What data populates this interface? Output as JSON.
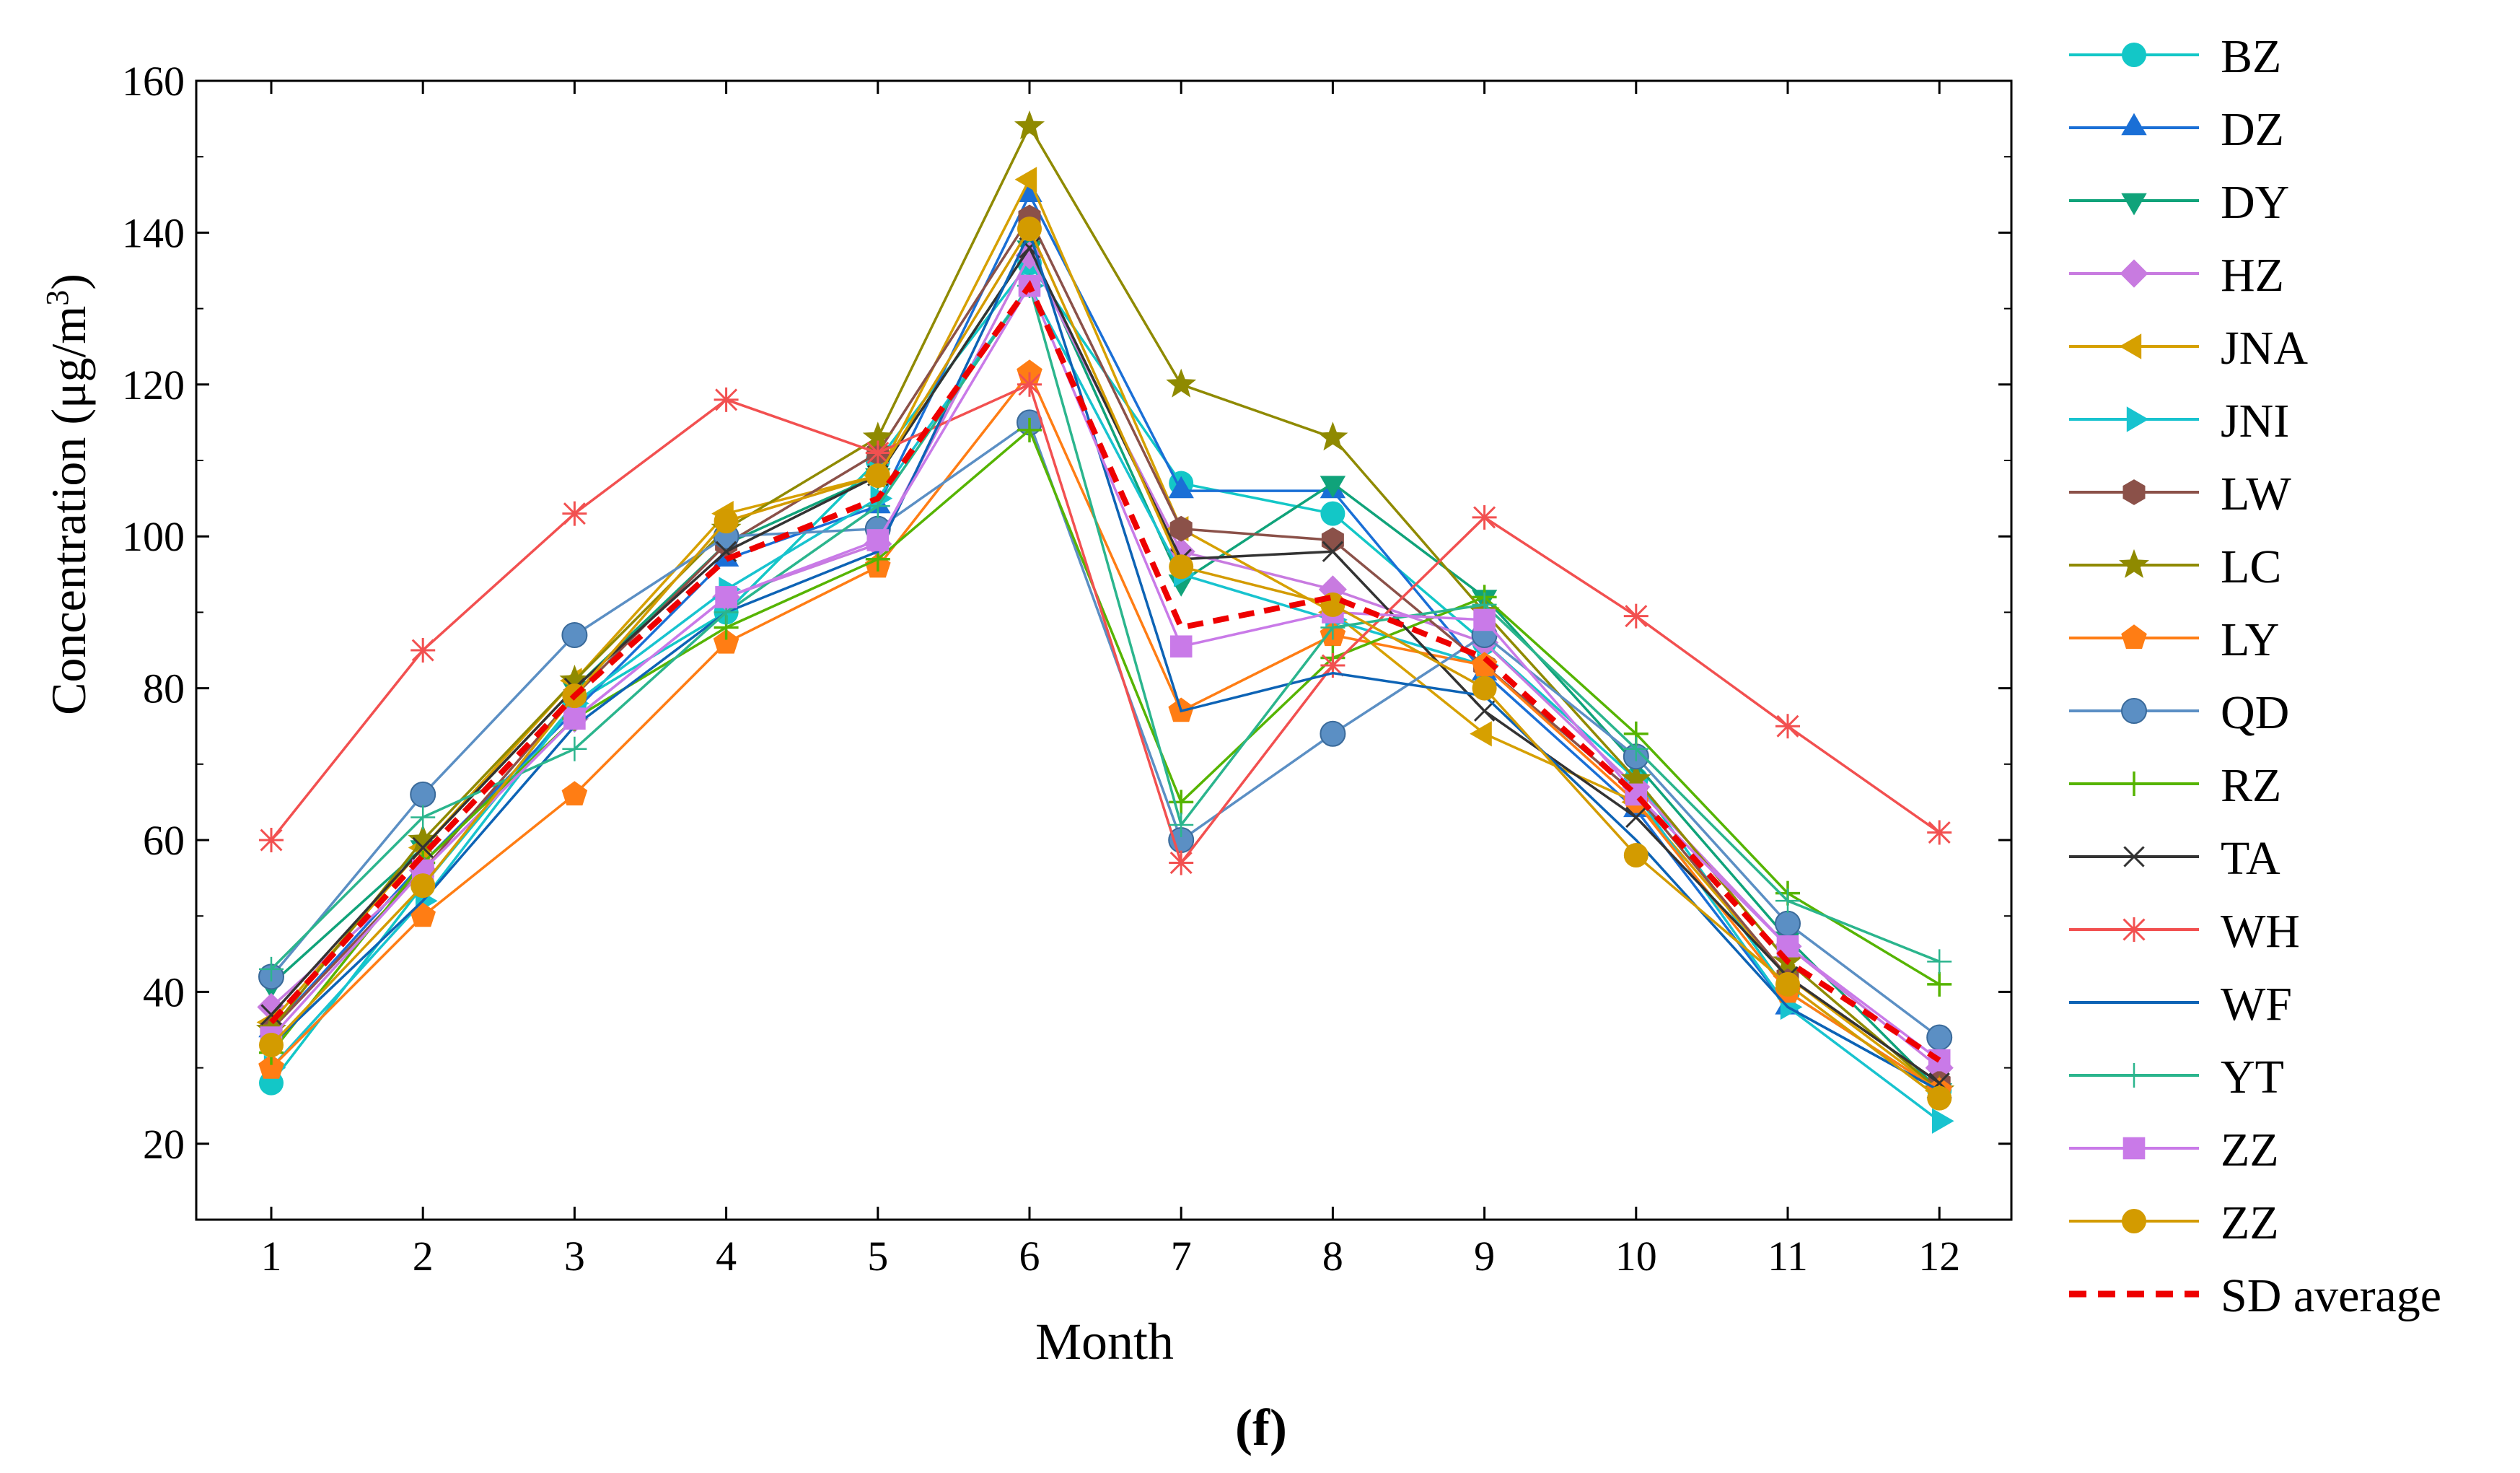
{
  "chart_data": {
    "type": "line",
    "title": "",
    "caption": "(f)",
    "xlabel": "Month",
    "ylabel_main": "Concentration (μg/m",
    "ylabel_sup": "3",
    "ylabel_close": ")",
    "categories": [
      "1",
      "2",
      "3",
      "4",
      "5",
      "6",
      "7",
      "8",
      "9",
      "10",
      "11",
      "12"
    ],
    "yticks": [
      "20",
      "40",
      "60",
      "80",
      "100",
      "120",
      "140",
      "160"
    ],
    "ylim": [
      10,
      160
    ],
    "legend_position": "right",
    "series": [
      {
        "name": "BZ",
        "color": "#13c7c7",
        "marker": "circle",
        "values": [
          28,
          54,
          78,
          90,
          110,
          136,
          107,
          103,
          86,
          68,
          40,
          27
        ]
      },
      {
        "name": "DZ",
        "color": "#1a6fd6",
        "marker": "triangle-up",
        "values": [
          35,
          57,
          77,
          97,
          104,
          145,
          106,
          106,
          82,
          64,
          38,
          27
        ]
      },
      {
        "name": "DY",
        "color": "#10a37a",
        "marker": "triangle-down",
        "values": [
          41,
          59,
          80,
          99,
          108,
          138,
          94,
          107,
          92,
          70,
          47,
          27
        ]
      },
      {
        "name": "HZ",
        "color": "#c87be0",
        "marker": "diamond",
        "values": [
          38,
          56,
          76,
          92,
          99,
          137,
          98,
          93,
          86,
          67,
          46,
          30
        ]
      },
      {
        "name": "JNA",
        "color": "#d6a000",
        "marker": "triangle-left",
        "values": [
          36,
          59,
          81,
          103,
          108,
          147,
          101,
          90,
          74,
          65,
          42,
          27
        ]
      },
      {
        "name": "JNI",
        "color": "#18c3cf",
        "marker": "triangle-right",
        "values": [
          30,
          52,
          78,
          93,
          105,
          133,
          95,
          89,
          83,
          66,
          38,
          23
        ]
      },
      {
        "name": "LW",
        "color": "#8b5149",
        "marker": "hexagon",
        "values": [
          35,
          56,
          79,
          99,
          111,
          142,
          101,
          99.5,
          83,
          66,
          42,
          28
        ]
      },
      {
        "name": "LC",
        "color": "#8f8a00",
        "marker": "star",
        "values": [
          35,
          60,
          81,
          101,
          113,
          154,
          120,
          113,
          90,
          68,
          44,
          27
        ]
      },
      {
        "name": "LY",
        "color": "#ff7d14",
        "marker": "pentagon",
        "values": [
          30,
          50,
          66,
          86,
          96,
          121.5,
          77,
          87,
          83,
          65,
          40,
          27
        ]
      },
      {
        "name": "QD",
        "color": "#5b8fc4",
        "marker": "sphere",
        "values": [
          42,
          66,
          87,
          100,
          101,
          115,
          60,
          74,
          87,
          71,
          49,
          34
        ]
      },
      {
        "name": "RZ",
        "color": "#56b400",
        "marker": "plus",
        "values": [
          32,
          57,
          76,
          88,
          97,
          114,
          65,
          84,
          92,
          74,
          53,
          41
        ]
      },
      {
        "name": "TA",
        "color": "#333333",
        "marker": "x",
        "values": [
          37,
          59,
          80,
          98,
          108,
          138,
          97,
          98,
          77,
          63,
          42,
          28
        ]
      },
      {
        "name": "WH",
        "color": "#f25050",
        "marker": "asterisk",
        "values": [
          60,
          85,
          103,
          118,
          111,
          120,
          57,
          83,
          102.5,
          89.5,
          75,
          61
        ]
      },
      {
        "name": "WF",
        "color": "#0d63b5",
        "marker": "none",
        "values": [
          33,
          52,
          75,
          90,
          98,
          140,
          77,
          82,
          79,
          60,
          38,
          27
        ]
      },
      {
        "name": "YT",
        "color": "#2bb58d",
        "marker": "plus-thin",
        "values": [
          43,
          63,
          72,
          90,
          104,
          133,
          62,
          88,
          91,
          72,
          52,
          44
        ]
      },
      {
        "name": "ZZ",
        "color": "#c97ae8",
        "marker": "square",
        "values": [
          34,
          56,
          76,
          92,
          99.5,
          133,
          85.5,
          90,
          89,
          66,
          46,
          31
        ]
      },
      {
        "name": "ZZ",
        "color": "#d39b00",
        "marker": "circle",
        "values": [
          33,
          54,
          79,
          102,
          108,
          140.5,
          96,
          91,
          80,
          58,
          41,
          26
        ]
      },
      {
        "name": "SD average",
        "color": "#ee0000",
        "marker": "none",
        "dashed": true,
        "values": [
          36,
          58,
          79,
          97,
          105,
          133,
          88,
          92,
          84,
          66,
          44,
          31
        ]
      }
    ]
  }
}
